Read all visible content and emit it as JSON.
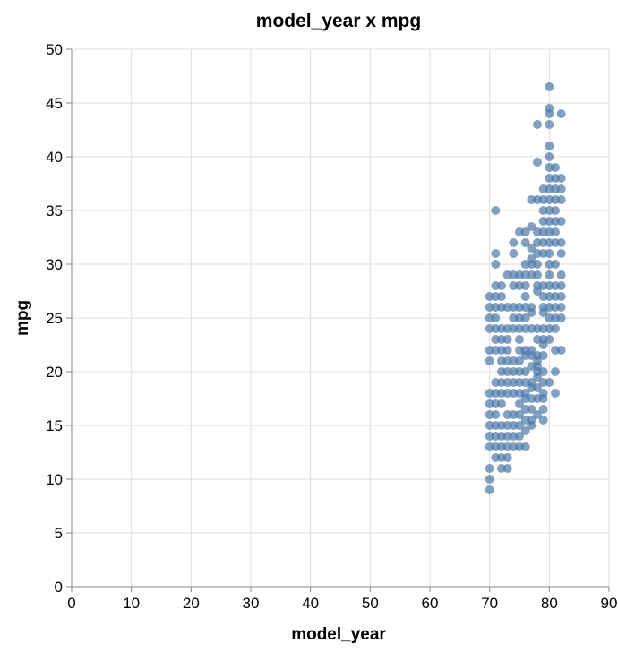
{
  "chart_data": {
    "type": "scatter",
    "title": "model_year x mpg",
    "xlabel": "model_year",
    "ylabel": "mpg",
    "xlim": [
      0,
      90
    ],
    "ylim": [
      0,
      50
    ],
    "xticks": [
      "0",
      "10",
      "20",
      "30",
      "40",
      "50",
      "60",
      "70",
      "80",
      "90"
    ],
    "yticks": [
      "0",
      "5",
      "10",
      "15",
      "20",
      "25",
      "30",
      "35",
      "40",
      "45",
      "50"
    ],
    "grid": true,
    "point_color": "#4c78a8",
    "points": [
      [
        70,
        9
      ],
      [
        70,
        10
      ],
      [
        70,
        11
      ],
      [
        70,
        13
      ],
      [
        70,
        14
      ],
      [
        70,
        15
      ],
      [
        70,
        16
      ],
      [
        70,
        17
      ],
      [
        70,
        18
      ],
      [
        70,
        21
      ],
      [
        70,
        22
      ],
      [
        70,
        24
      ],
      [
        70,
        25
      ],
      [
        70,
        26
      ],
      [
        70,
        27
      ],
      [
        71,
        12
      ],
      [
        71,
        13
      ],
      [
        71,
        14
      ],
      [
        71,
        15
      ],
      [
        71,
        16
      ],
      [
        71,
        17
      ],
      [
        71,
        18
      ],
      [
        71,
        19
      ],
      [
        71,
        22
      ],
      [
        71,
        23
      ],
      [
        71,
        24
      ],
      [
        71,
        25
      ],
      [
        71,
        26
      ],
      [
        71,
        27
      ],
      [
        71,
        28
      ],
      [
        71,
        30
      ],
      [
        71,
        31
      ],
      [
        71,
        35
      ],
      [
        72,
        11
      ],
      [
        72,
        12
      ],
      [
        72,
        13
      ],
      [
        72,
        14
      ],
      [
        72,
        15
      ],
      [
        72,
        17
      ],
      [
        72,
        18
      ],
      [
        72,
        19
      ],
      [
        72,
        20
      ],
      [
        72,
        21
      ],
      [
        72,
        22
      ],
      [
        72,
        23
      ],
      [
        72,
        24
      ],
      [
        72,
        26
      ],
      [
        72,
        27
      ],
      [
        72,
        28
      ],
      [
        73,
        11
      ],
      [
        73,
        12
      ],
      [
        73,
        13
      ],
      [
        73,
        14
      ],
      [
        73,
        15
      ],
      [
        73,
        16
      ],
      [
        73,
        18
      ],
      [
        73,
        19
      ],
      [
        73,
        20
      ],
      [
        73,
        21
      ],
      [
        73,
        22
      ],
      [
        73,
        23
      ],
      [
        73,
        24
      ],
      [
        73,
        26
      ],
      [
        73,
        29
      ],
      [
        74,
        13
      ],
      [
        74,
        14
      ],
      [
        74,
        15
      ],
      [
        74,
        16
      ],
      [
        74,
        18
      ],
      [
        74,
        19
      ],
      [
        74,
        20
      ],
      [
        74,
        21
      ],
      [
        74,
        24
      ],
      [
        74,
        25
      ],
      [
        74,
        26
      ],
      [
        74,
        28
      ],
      [
        74,
        29
      ],
      [
        74,
        31
      ],
      [
        74,
        32
      ],
      [
        75,
        13
      ],
      [
        75,
        14
      ],
      [
        75,
        15
      ],
      [
        75,
        16
      ],
      [
        75,
        17
      ],
      [
        75,
        18
      ],
      [
        75,
        19
      ],
      [
        75,
        20
      ],
      [
        75,
        21
      ],
      [
        75,
        22
      ],
      [
        75,
        23
      ],
      [
        75,
        24
      ],
      [
        75,
        25
      ],
      [
        75,
        26
      ],
      [
        75,
        28
      ],
      [
        75,
        29
      ],
      [
        75,
        33
      ],
      [
        76,
        13
      ],
      [
        76,
        14.5
      ],
      [
        76,
        15.5
      ],
      [
        76,
        16.5
      ],
      [
        76,
        17.5
      ],
      [
        76,
        18
      ],
      [
        76,
        19
      ],
      [
        76,
        20
      ],
      [
        76,
        21.5
      ],
      [
        76,
        22
      ],
      [
        76,
        24
      ],
      [
        76,
        25
      ],
      [
        76,
        26
      ],
      [
        76,
        27
      ],
      [
        76,
        28
      ],
      [
        76,
        29
      ],
      [
        76,
        30
      ],
      [
        76,
        32
      ],
      [
        76,
        33
      ],
      [
        77,
        15
      ],
      [
        77,
        15.5
      ],
      [
        77,
        16.5
      ],
      [
        77,
        17.5
      ],
      [
        77,
        18.5
      ],
      [
        77,
        19
      ],
      [
        77,
        20.5
      ],
      [
        77,
        21.5
      ],
      [
        77,
        22
      ],
      [
        77,
        24
      ],
      [
        77,
        25.5
      ],
      [
        77,
        26
      ],
      [
        77,
        29
      ],
      [
        77,
        30
      ],
      [
        77,
        30.5
      ],
      [
        77,
        31.5
      ],
      [
        77,
        33.5
      ],
      [
        77,
        36
      ],
      [
        78,
        16
      ],
      [
        78,
        17.5
      ],
      [
        78,
        18.5
      ],
      [
        78,
        19.5
      ],
      [
        78,
        20
      ],
      [
        78,
        20.5
      ],
      [
        78,
        21
      ],
      [
        78,
        21.5
      ],
      [
        78,
        23
      ],
      [
        78,
        24
      ],
      [
        78,
        27.5
      ],
      [
        78,
        28
      ],
      [
        78,
        29
      ],
      [
        78,
        30
      ],
      [
        78,
        31
      ],
      [
        78,
        32
      ],
      [
        78,
        33
      ],
      [
        78,
        36
      ],
      [
        78,
        39.5
      ],
      [
        78,
        43
      ],
      [
        79,
        15.5
      ],
      [
        79,
        16.5
      ],
      [
        79,
        17.5
      ],
      [
        79,
        18
      ],
      [
        79,
        19
      ],
      [
        79,
        20
      ],
      [
        79,
        21.5
      ],
      [
        79,
        22.5
      ],
      [
        79,
        23
      ],
      [
        79,
        24
      ],
      [
        79,
        25.5
      ],
      [
        79,
        26
      ],
      [
        79,
        27
      ],
      [
        79,
        28
      ],
      [
        79,
        31
      ],
      [
        79,
        32
      ],
      [
        79,
        33
      ],
      [
        79,
        34
      ],
      [
        79,
        35
      ],
      [
        79,
        36
      ],
      [
        79,
        37
      ],
      [
        80,
        19
      ],
      [
        80,
        23
      ],
      [
        80,
        24
      ],
      [
        80,
        25
      ],
      [
        80,
        26
      ],
      [
        80,
        27
      ],
      [
        80,
        28
      ],
      [
        80,
        29
      ],
      [
        80,
        30
      ],
      [
        80,
        31
      ],
      [
        80,
        32
      ],
      [
        80,
        33
      ],
      [
        80,
        34
      ],
      [
        80,
        35
      ],
      [
        80,
        36
      ],
      [
        80,
        37
      ],
      [
        80,
        38
      ],
      [
        80,
        39
      ],
      [
        80,
        40
      ],
      [
        80,
        41
      ],
      [
        80,
        43
      ],
      [
        80,
        44
      ],
      [
        80,
        44.5
      ],
      [
        80,
        46.5
      ],
      [
        81,
        18
      ],
      [
        81,
        20
      ],
      [
        81,
        22
      ],
      [
        81,
        24
      ],
      [
        81,
        25
      ],
      [
        81,
        26
      ],
      [
        81,
        27
      ],
      [
        81,
        28
      ],
      [
        81,
        30
      ],
      [
        81,
        32
      ],
      [
        81,
        33
      ],
      [
        81,
        34
      ],
      [
        81,
        35
      ],
      [
        81,
        36
      ],
      [
        81,
        37
      ],
      [
        81,
        38
      ],
      [
        81,
        39
      ],
      [
        82,
        22
      ],
      [
        82,
        25
      ],
      [
        82,
        26
      ],
      [
        82,
        27
      ],
      [
        82,
        28
      ],
      [
        82,
        29
      ],
      [
        82,
        31
      ],
      [
        82,
        32
      ],
      [
        82,
        34
      ],
      [
        82,
        36
      ],
      [
        82,
        37
      ],
      [
        82,
        38
      ],
      [
        82,
        44
      ]
    ]
  }
}
